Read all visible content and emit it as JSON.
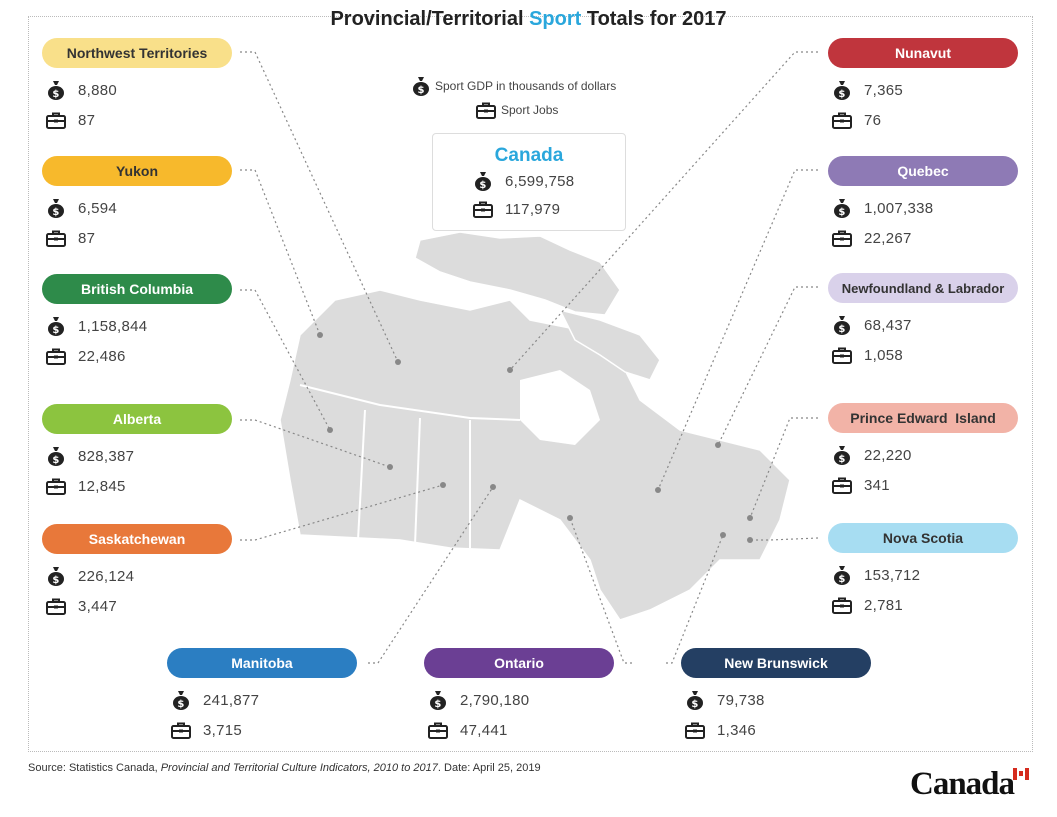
{
  "title": {
    "pre": "Provincial/Territorial ",
    "accent": "Sport",
    "post": " Totals for 2017"
  },
  "legend": {
    "gdp": "Sport GDP in thousands of dollars",
    "jobs": "Sport Jobs"
  },
  "canada": {
    "name": "Canada",
    "gdp": "6,599,758",
    "jobs": "117,979"
  },
  "regions": [
    {
      "name": "Northwest Territories",
      "gdp": "8,880",
      "jobs": "87",
      "color": "#f9e08a",
      "text": "#333"
    },
    {
      "name": "Yukon",
      "gdp": "6,594",
      "jobs": "87",
      "color": "#f7b92c",
      "text": "#333"
    },
    {
      "name": "British Columbia",
      "gdp": "1,158,844",
      "jobs": "22,486",
      "color": "#2e8b4a",
      "text": "#fff"
    },
    {
      "name": "Alberta",
      "gdp": "828,387",
      "jobs": "12,845",
      "color": "#8cc43f",
      "text": "#fff"
    },
    {
      "name": "Saskatchewan",
      "gdp": "226,124",
      "jobs": "3,447",
      "color": "#e8783a",
      "text": "#fff"
    },
    {
      "name": "Nunavut",
      "gdp": "7,365",
      "jobs": "76",
      "color": "#c0353d",
      "text": "#fff"
    },
    {
      "name": "Quebec",
      "gdp": "1,007,338",
      "jobs": "22,267",
      "color": "#8e7ab5",
      "text": "#fff"
    },
    {
      "name": "Newfoundland & Labrador",
      "gdp": "68,437",
      "jobs": "1,058",
      "color": "#d9d1ea",
      "text": "#333"
    },
    {
      "name": "Prince Edward  Island",
      "gdp": "22,220",
      "jobs": "341",
      "color": "#f2b3a7",
      "text": "#333"
    },
    {
      "name": "Nova Scotia",
      "gdp": "153,712",
      "jobs": "2,781",
      "color": "#a7ddf2",
      "text": "#333"
    },
    {
      "name": "Manitoba",
      "gdp": "241,877",
      "jobs": "3,715",
      "color": "#2b7ec2",
      "text": "#fff"
    },
    {
      "name": "Ontario",
      "gdp": "2,790,180",
      "jobs": "47,441",
      "color": "#6b3f94",
      "text": "#fff"
    },
    {
      "name": "New Brunswick",
      "gdp": "79,738",
      "jobs": "1,346",
      "color": "#243f63",
      "text": "#fff"
    }
  ],
  "source": {
    "pre": "Source: Statistics Canada, ",
    "italic": "Provincial and Territorial Culture Indicators, 2010 to 2017",
    "post": ". Date: April 25, 2019"
  },
  "wordmark": "Canada",
  "icons": {
    "gdp": "money-bag-icon",
    "jobs": "briefcase-icon"
  }
}
